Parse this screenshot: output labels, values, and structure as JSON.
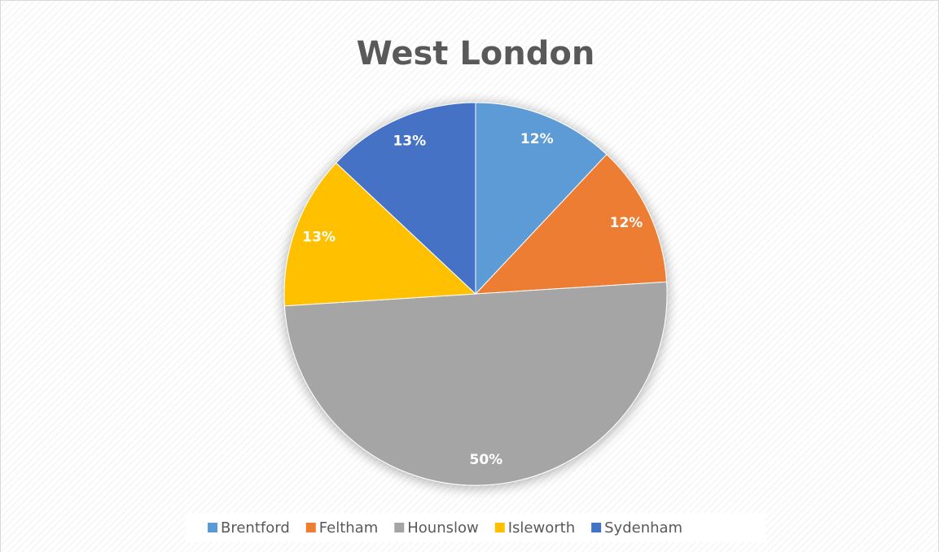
{
  "chart_data": {
    "type": "pie",
    "title": "West London",
    "categories": [
      "Brentford",
      "Feltham",
      "Hounslow",
      "Isleworth",
      "Sydenham"
    ],
    "values": [
      12,
      12,
      50,
      13,
      13
    ],
    "value_labels": [
      "12%",
      "12%",
      "50%",
      "13%",
      "13%"
    ],
    "colors": [
      "#5b9bd5",
      "#ed7d31",
      "#a5a5a5",
      "#ffc000",
      "#4472c4"
    ],
    "legend": "bottom"
  }
}
